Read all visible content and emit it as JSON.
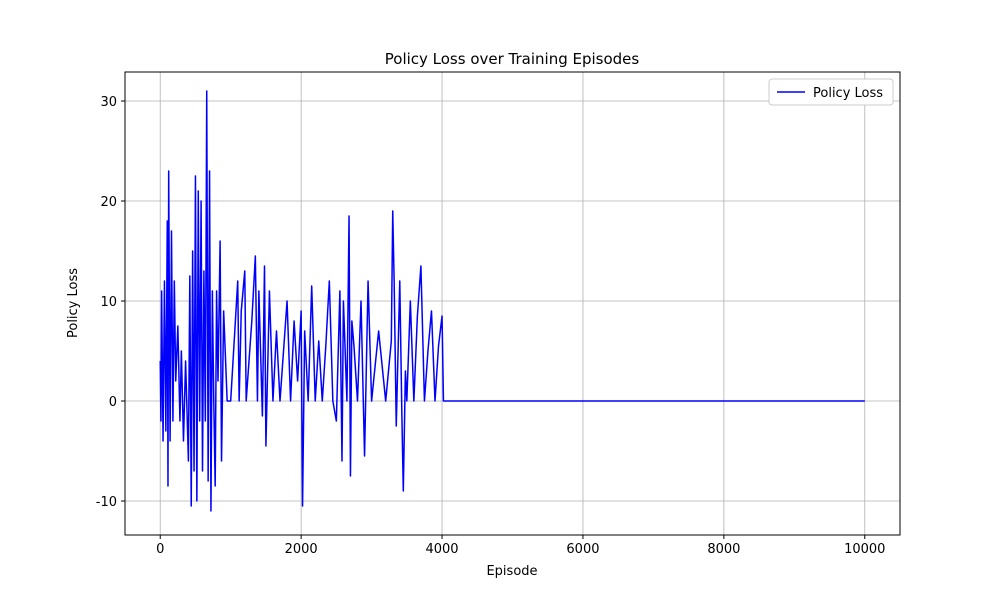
{
  "chart_data": {
    "type": "line",
    "title": "Policy Loss over Training Episodes",
    "xlabel": "Episode",
    "ylabel": "Policy Loss",
    "x": [
      0,
      10,
      20,
      40,
      60,
      80,
      100,
      110,
      120,
      140,
      160,
      180,
      200,
      220,
      250,
      280,
      300,
      330,
      360,
      400,
      420,
      440,
      460,
      480,
      500,
      520,
      540,
      560,
      580,
      600,
      620,
      640,
      660,
      680,
      700,
      720,
      740,
      760,
      780,
      800,
      820,
      850,
      870,
      900,
      950,
      1000,
      1100,
      1120,
      1150,
      1200,
      1220,
      1300,
      1350,
      1380,
      1400,
      1450,
      1480,
      1500,
      1550,
      1600,
      1650,
      1700,
      1750,
      1800,
      1850,
      1900,
      1950,
      2000,
      2020,
      2050,
      2100,
      2150,
      2200,
      2250,
      2300,
      2350,
      2400,
      2450,
      2500,
      2550,
      2580,
      2600,
      2650,
      2680,
      2700,
      2720,
      2750,
      2800,
      2850,
      2900,
      2950,
      3000,
      3100,
      3200,
      3280,
      3300,
      3320,
      3350,
      3400,
      3430,
      3450,
      3480,
      3500,
      3550,
      3600,
      3650,
      3700,
      3750,
      3800,
      3850,
      3900,
      3950,
      4000,
      4020,
      4100,
      4300,
      5000,
      10000
    ],
    "series": [
      {
        "name": "Policy Loss",
        "color": "#0000ff",
        "values": [
          4,
          -2,
          11,
          -4,
          12,
          -3,
          18,
          -8.5,
          23,
          -4,
          17,
          -2,
          12,
          2,
          7.5,
          -2,
          5,
          -4,
          4,
          -6,
          12.5,
          -10.5,
          15,
          -7,
          22.5,
          -10,
          21,
          -2,
          20,
          -7,
          13,
          -2,
          31,
          -8,
          23,
          -11,
          11,
          0,
          -8.5,
          11,
          2,
          16,
          -6,
          9,
          0,
          0,
          12,
          0,
          9,
          13,
          0,
          8,
          14.5,
          0,
          11,
          -1.5,
          13.5,
          -4.5,
          11,
          0,
          7,
          0,
          5,
          10,
          0,
          8,
          2,
          9,
          -10.5,
          7,
          0,
          11.5,
          0,
          6,
          0,
          5.5,
          12,
          0,
          -2,
          11,
          -6,
          10,
          0,
          18.5,
          -7.5,
          8,
          5.5,
          0,
          10,
          -5.5,
          12,
          0,
          7,
          0,
          6,
          19,
          12,
          -2.5,
          12,
          -1.5,
          -9,
          3,
          0,
          10,
          0,
          8.5,
          13.5,
          0,
          5,
          9,
          0,
          5.5,
          8.5,
          0,
          0,
          0,
          0,
          0
        ]
      }
    ],
    "xlim": [
      -500,
      10500
    ],
    "ylim": [
      -13.4,
      32.9
    ],
    "xticks": [
      0,
      2000,
      4000,
      6000,
      8000,
      10000
    ],
    "yticks": [
      -10,
      0,
      10,
      20,
      30
    ],
    "grid": true,
    "legend": "upper right"
  }
}
